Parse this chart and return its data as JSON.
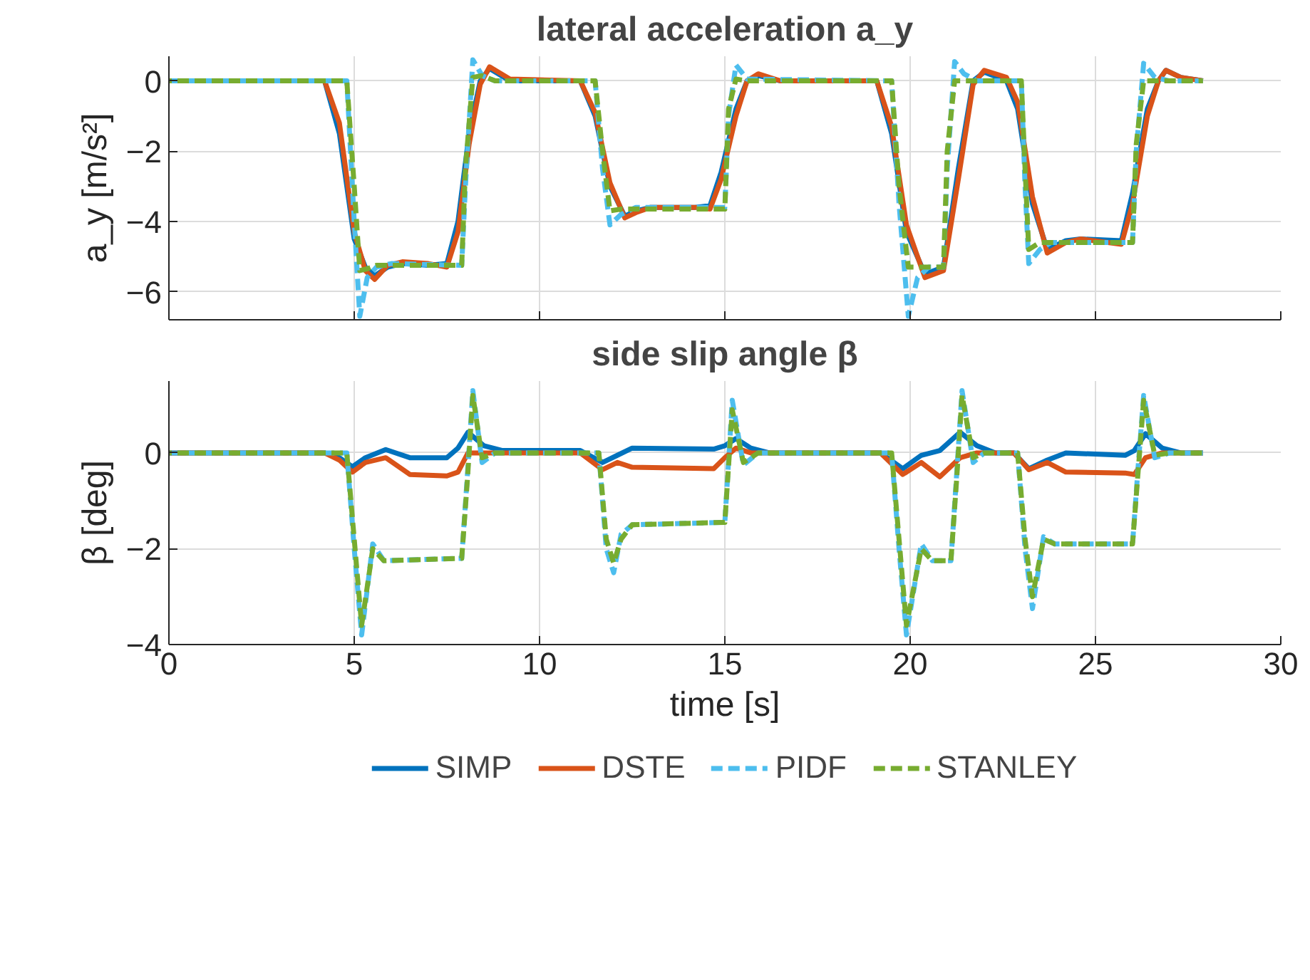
{
  "chart_data": [
    {
      "type": "line",
      "title": "lateral acceleration a_y",
      "ylabel": "a_y [m/s²]",
      "xlim": [
        0,
        30
      ],
      "xticks": [
        0,
        5,
        10,
        15,
        20,
        25,
        30
      ],
      "ylim": [
        -6.8,
        0.7
      ],
      "yticks": [
        -6,
        -4,
        -2,
        0
      ],
      "grid": true,
      "tick_labels": "y",
      "marker": "none",
      "x": [
        0,
        4.2,
        4.6,
        5.0,
        5.3,
        5.55,
        5.9,
        6.3,
        7.0,
        7.5,
        7.8,
        8.1,
        8.4,
        8.65,
        9.2,
        11.1,
        11.5,
        11.9,
        12.3,
        12.6,
        13.0,
        14.2,
        14.6,
        14.9,
        15.3,
        15.6,
        15.9,
        16.5,
        19.1,
        19.5,
        19.9,
        20.4,
        20.9,
        21.3,
        21.7,
        22.0,
        22.6,
        22.9,
        23.3,
        23.7,
        24.2,
        24.6,
        25.7,
        26.0,
        26.4,
        26.7,
        26.9,
        27.3,
        27.9
      ],
      "series": [
        {
          "color": "#0072bd",
          "line_style": "solid",
          "values": [
            0,
            0,
            -1.5,
            -4.5,
            -5.3,
            -5.55,
            -5.3,
            -5.2,
            -5.25,
            -5.2,
            -4.0,
            -1.5,
            0,
            0.35,
            0,
            0,
            -1.0,
            -3.0,
            -3.85,
            -3.7,
            -3.6,
            -3.6,
            -3.55,
            -2.6,
            -0.8,
            0,
            0.15,
            0,
            0,
            -1.5,
            -4.3,
            -5.5,
            -5.3,
            -2.5,
            0,
            0.25,
            0,
            -0.8,
            -3.5,
            -4.8,
            -4.55,
            -4.5,
            -4.55,
            -3.2,
            -0.8,
            0,
            0.3,
            0.1,
            0
          ]
        },
        {
          "color": "#d95319",
          "line_style": "solid",
          "values": [
            0,
            0,
            -1.2,
            -4.3,
            -5.4,
            -5.65,
            -5.25,
            -5.15,
            -5.2,
            -5.3,
            -4.3,
            -1.8,
            -0.1,
            0.4,
            0.05,
            0,
            -0.9,
            -2.9,
            -3.9,
            -3.75,
            -3.6,
            -3.6,
            -3.65,
            -2.8,
            -1.0,
            0,
            0.2,
            0,
            0,
            -1.3,
            -4.1,
            -5.6,
            -5.4,
            -2.8,
            -0.1,
            0.3,
            0.1,
            -0.6,
            -3.3,
            -4.9,
            -4.6,
            -4.5,
            -4.65,
            -3.5,
            -1.0,
            0,
            0.3,
            0.1,
            0
          ]
        },
        {
          "color": "#4dbeee",
          "line_style": "dashed",
          "x": [
            0,
            4.8,
            5.0,
            5.15,
            5.35,
            5.6,
            6.0,
            7.9,
            8.0,
            8.2,
            8.45,
            8.8,
            11.5,
            11.7,
            11.9,
            12.2,
            12.6,
            15.0,
            15.1,
            15.3,
            15.6,
            19.5,
            19.7,
            19.95,
            20.2,
            20.5,
            20.9,
            21.0,
            21.2,
            21.45,
            21.8,
            23.0,
            23.1,
            23.2,
            23.5,
            23.8,
            26.0,
            26.1,
            26.3,
            26.6,
            27.0,
            27.9
          ],
          "values": [
            0,
            0,
            -4.0,
            -6.7,
            -5.6,
            -5.3,
            -5.2,
            -5.25,
            -3.0,
            0.6,
            0.15,
            0,
            0,
            -2.5,
            -4.1,
            -3.8,
            -3.6,
            -3.6,
            -1.0,
            0.45,
            0.05,
            0,
            -3.5,
            -6.7,
            -5.6,
            -5.3,
            -5.3,
            -2.5,
            0.55,
            0.2,
            0,
            0,
            -3.0,
            -5.2,
            -4.8,
            -4.6,
            -4.6,
            -2.0,
            0.5,
            0.1,
            0,
            0
          ]
        },
        {
          "color": "#77ac30",
          "line_style": "dashed",
          "x": [
            0,
            4.8,
            5.0,
            5.15,
            5.35,
            5.6,
            6.0,
            7.9,
            8.0,
            8.2,
            8.45,
            8.8,
            11.5,
            11.7,
            11.9,
            12.2,
            12.6,
            15.0,
            15.1,
            15.3,
            15.6,
            19.5,
            19.7,
            19.95,
            20.2,
            20.5,
            20.9,
            21.0,
            21.2,
            21.45,
            21.8,
            23.0,
            23.1,
            23.2,
            23.5,
            23.8,
            26.0,
            26.1,
            26.3,
            26.6,
            27.0,
            27.9
          ],
          "values": [
            0,
            0,
            -3.0,
            -5.4,
            -5.35,
            -5.25,
            -5.25,
            -5.25,
            -2.5,
            0.1,
            0.15,
            0,
            0,
            -2.0,
            -3.7,
            -3.65,
            -3.65,
            -3.65,
            -0.8,
            0.05,
            0,
            0,
            -3.0,
            -5.3,
            -5.3,
            -5.3,
            -5.3,
            -2.0,
            0,
            0,
            0,
            0,
            -2.5,
            -4.8,
            -4.6,
            -4.6,
            -4.6,
            -1.8,
            0,
            0,
            0,
            0
          ]
        }
      ]
    },
    {
      "type": "line",
      "title": "side slip angle β",
      "xlabel": "time [s]",
      "ylabel": "β [deg]",
      "xlim": [
        0,
        30
      ],
      "xticks": [
        0,
        5,
        10,
        15,
        20,
        25,
        30
      ],
      "ylim": [
        -4,
        1.5
      ],
      "yticks": [
        -4,
        -2,
        0
      ],
      "grid": true,
      "legend": "bottom",
      "marker": "none",
      "x": [
        0,
        4.2,
        4.6,
        4.95,
        5.3,
        5.85,
        6.5,
        7.5,
        7.8,
        8.07,
        8.5,
        9.0,
        11.1,
        11.7,
        12.1,
        12.5,
        14.7,
        15.0,
        15.3,
        15.7,
        16.2,
        19.2,
        19.8,
        20.3,
        20.8,
        21.35,
        21.8,
        22.3,
        22.8,
        23.2,
        23.7,
        24.2,
        25.8,
        26.05,
        26.35,
        26.8,
        27.3,
        27.9
      ],
      "series": [
        {
          "name": "SIMP",
          "color": "#0072bd",
          "line_style": "solid",
          "values": [
            0,
            0,
            -0.1,
            -0.29,
            -0.1,
            0.07,
            -0.1,
            -0.1,
            0.1,
            0.43,
            0.15,
            0.05,
            0.05,
            -0.2,
            -0.05,
            0.1,
            0.08,
            0.15,
            0.3,
            0.1,
            0,
            0,
            -0.33,
            -0.05,
            0.05,
            0.43,
            0.15,
            0,
            0,
            -0.33,
            -0.15,
            0,
            -0.05,
            0.05,
            0.4,
            0.1,
            0,
            0
          ]
        },
        {
          "name": "DSTE",
          "color": "#d95319",
          "line_style": "solid",
          "values": [
            0,
            0,
            -0.15,
            -0.4,
            -0.2,
            -0.1,
            -0.45,
            -0.48,
            -0.4,
            0,
            0,
            0,
            0,
            -0.35,
            -0.2,
            -0.3,
            -0.33,
            -0.1,
            0.1,
            0,
            0,
            0,
            -0.45,
            -0.2,
            -0.5,
            -0.1,
            0,
            0,
            0,
            -0.35,
            -0.2,
            -0.4,
            -0.42,
            -0.45,
            -0.1,
            0,
            0,
            0
          ]
        },
        {
          "name": "PIDF",
          "color": "#4dbeee",
          "line_style": "dashed",
          "x": [
            0,
            4.8,
            5.0,
            5.2,
            5.5,
            5.8,
            7.9,
            8.05,
            8.2,
            8.45,
            8.8,
            9.1,
            11.6,
            11.8,
            12.0,
            12.2,
            12.5,
            15.0,
            15.2,
            15.5,
            15.9,
            19.5,
            19.7,
            19.9,
            20.3,
            20.6,
            21.1,
            21.25,
            21.4,
            21.7,
            22.0,
            22.9,
            23.1,
            23.3,
            23.6,
            23.9,
            26.0,
            26.15,
            26.3,
            26.6,
            27.0,
            27.9
          ],
          "values": [
            0,
            0,
            -2.0,
            -3.8,
            -1.9,
            -2.25,
            -2.2,
            -0.5,
            1.3,
            -0.2,
            0,
            0,
            0,
            -2.0,
            -2.5,
            -1.7,
            -1.5,
            -1.45,
            1.1,
            -0.25,
            0,
            0,
            -2.0,
            -3.8,
            -1.9,
            -2.25,
            -2.25,
            -0.5,
            1.3,
            -0.2,
            0,
            0,
            -2.0,
            -3.25,
            -1.75,
            -1.9,
            -1.9,
            -0.3,
            1.2,
            -0.1,
            0,
            0
          ]
        },
        {
          "name": "STANLEY",
          "color": "#77ac30",
          "line_style": "dashed",
          "x": [
            0,
            4.8,
            5.0,
            5.2,
            5.5,
            5.8,
            7.9,
            8.05,
            8.2,
            8.45,
            8.8,
            9.1,
            11.6,
            11.8,
            12.0,
            12.2,
            12.5,
            15.0,
            15.2,
            15.5,
            15.9,
            19.5,
            19.7,
            19.9,
            20.3,
            20.6,
            21.1,
            21.25,
            21.4,
            21.7,
            22.0,
            22.9,
            23.1,
            23.3,
            23.6,
            23.9,
            26.0,
            26.15,
            26.3,
            26.6,
            27.0,
            27.9
          ],
          "values": [
            0,
            0,
            -1.8,
            -3.6,
            -2.0,
            -2.25,
            -2.2,
            -0.6,
            1.2,
            -0.1,
            0,
            0,
            0,
            -1.8,
            -2.3,
            -1.8,
            -1.5,
            -1.45,
            0.9,
            -0.2,
            0,
            0,
            -1.8,
            -3.6,
            -2.0,
            -2.25,
            -2.25,
            -0.6,
            1.2,
            -0.1,
            0,
            0,
            -1.8,
            -3.0,
            -1.8,
            -1.9,
            -1.9,
            -0.4,
            1.1,
            -0.05,
            0,
            0
          ]
        }
      ]
    }
  ]
}
